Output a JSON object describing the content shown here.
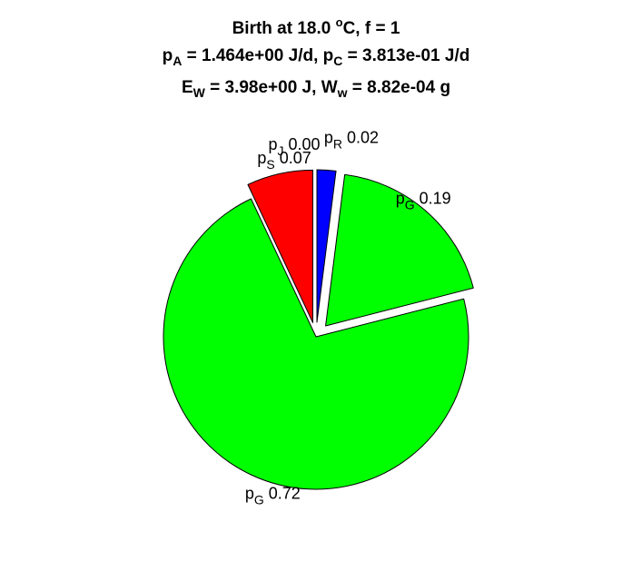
{
  "title": {
    "line1_prefix": "Birth at 18.0 ",
    "line1_degree": "o",
    "line1_suffix": "C, f = 1",
    "line2_p1": "p",
    "line2_sub1": "A",
    "line2_val1": " = 1.464e+00 J/d, ",
    "line2_p2": "p",
    "line2_sub2": "C",
    "line2_val2": " = 3.813e-01 J/d",
    "line3_e": "E",
    "line3_sub1": "W",
    "line3_val1": " = 3.98e+00 J, ",
    "line3_w": "W",
    "line3_sub2": "w",
    "line3_val2": " = 8.82e-04 g"
  },
  "chart_data": {
    "type": "pie",
    "start_direction": "top",
    "direction": "clockwise",
    "slices": [
      {
        "symbol": "p",
        "subscript": "R",
        "value": 0.02,
        "value_label": "0.02",
        "color": "#0000ff",
        "exploded": true
      },
      {
        "symbol": "p",
        "subscript": "G",
        "value": 0.19,
        "value_label": "0.19",
        "color": "#00ff00",
        "exploded": true
      },
      {
        "symbol": "p",
        "subscript": "G",
        "value": 0.72,
        "value_label": "0.72",
        "color": "#00ff00",
        "exploded": false
      },
      {
        "symbol": "p",
        "subscript": "S",
        "value": 0.07,
        "value_label": "0.07",
        "color": "#ff0000",
        "exploded": true
      },
      {
        "symbol": "p",
        "subscript": "J",
        "value": 0.0,
        "value_label": "0.00",
        "color": "#ffff00",
        "exploded": true
      }
    ]
  }
}
